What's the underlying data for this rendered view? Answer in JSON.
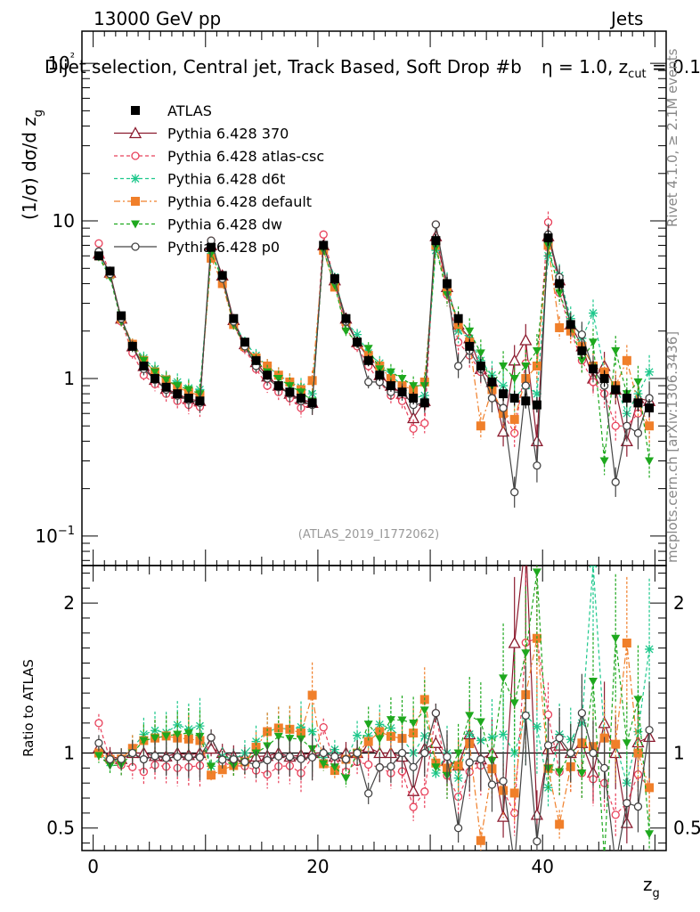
{
  "header": {
    "energy_label": "13000 GeV pp",
    "process_label": "Jets",
    "selection_label": "Dijet selection, Central jet, Track Based, Soft Drop #b",
    "beta_label": "η = 1.0, z",
    "zcut_sub": "cut",
    "zcut_value": " = 0.1"
  },
  "side_labels": {
    "rivet": "Rivet 4.1.0, ≥ 2.1M events",
    "mcplots": "mcplots.cern.ch [arXiv:1306.3436]"
  },
  "colors": {
    "atlas": "#000000",
    "p370": "#8b1a2e",
    "atlas_csc": "#e8405a",
    "d6t": "#1ec88c",
    "default": "#f07f2a",
    "dw": "#1ea81e",
    "p0": "#444444"
  },
  "chart_data": [
    {
      "type": "line",
      "panel": "main",
      "title": "Dijet selection, Central jet, Track Based, Soft Drop",
      "xlabel": "z_g",
      "ylabel": "(1/σ) dσ/d z_g",
      "yscale": "log",
      "xlim": [
        -1,
        51
      ],
      "ylim": [
        0.065,
        160
      ],
      "x_ticks": [
        "0",
        "20",
        "40"
      ],
      "y_ticks": [
        "10−1",
        "1",
        "10",
        "10²"
      ],
      "watermark": "(ATLAS_2019_I1772062)",
      "x": [
        0.5,
        1.5,
        2.5,
        3.5,
        4.5,
        5.5,
        6.5,
        7.5,
        8.5,
        9.5,
        10.5,
        11.5,
        12.5,
        13.5,
        14.5,
        15.5,
        16.5,
        17.5,
        18.5,
        19.5,
        20.5,
        21.5,
        22.5,
        23.5,
        24.5,
        25.5,
        26.5,
        27.5,
        28.5,
        29.5,
        30.5,
        31.5,
        32.5,
        33.5,
        34.5,
        35.5,
        36.5,
        37.5,
        38.5,
        39.5,
        40.5,
        41.5,
        42.5,
        43.5,
        44.5,
        45.5,
        46.5,
        47.5,
        48.5,
        49.5
      ],
      "series": [
        {
          "name": "ATLAS",
          "key": "atlas",
          "marker": "square-filled",
          "line": "none",
          "values": [
            6.0,
            4.8,
            2.5,
            1.6,
            1.2,
            1.0,
            0.88,
            0.8,
            0.75,
            0.72,
            6.8,
            4.5,
            2.4,
            1.7,
            1.3,
            1.05,
            0.9,
            0.82,
            0.75,
            0.7,
            7.0,
            4.3,
            2.4,
            1.7,
            1.3,
            1.05,
            0.9,
            0.82,
            0.75,
            0.7,
            7.5,
            4.0,
            2.4,
            1.6,
            1.2,
            0.95,
            0.8,
            0.75,
            0.72,
            0.68,
            7.8,
            4.0,
            2.2,
            1.5,
            1.15,
            1.0,
            0.85,
            0.75,
            0.7,
            0.65
          ]
        },
        {
          "name": "Pythia 6.428 370",
          "key": "p370",
          "marker": "triangle-open",
          "line": "solid",
          "values": [
            6.2,
            4.7,
            2.4,
            1.6,
            1.2,
            0.98,
            0.86,
            0.8,
            0.74,
            0.72,
            7.0,
            4.5,
            2.35,
            1.65,
            1.27,
            1.03,
            0.9,
            0.8,
            0.74,
            0.7,
            7.0,
            4.2,
            2.4,
            1.7,
            1.35,
            1.05,
            0.9,
            0.8,
            0.56,
            0.72,
            8.0,
            3.8,
            2.2,
            1.8,
            1.15,
            0.95,
            0.46,
            1.3,
            1.75,
            0.4,
            8.0,
            4.2,
            2.2,
            1.6,
            1.0,
            1.2,
            0.85,
            0.4,
            0.75,
            0.72
          ]
        },
        {
          "name": "Pythia 6.428 atlas-csc",
          "key": "atlas_csc",
          "marker": "circle-open",
          "line": "dashed",
          "values": [
            7.2,
            4.6,
            2.3,
            1.45,
            1.05,
            0.92,
            0.8,
            0.72,
            0.68,
            0.66,
            7.5,
            4.2,
            2.2,
            1.55,
            1.15,
            0.9,
            0.82,
            0.75,
            0.65,
            0.68,
            8.2,
            4.0,
            2.1,
            1.6,
            1.2,
            0.95,
            0.78,
            0.72,
            0.48,
            0.52,
            9.5,
            3.4,
            1.7,
            1.4,
            1.1,
            0.85,
            0.6,
            0.45,
            1.25,
            1.2,
            9.8,
            3.5,
            2.0,
            1.3,
            0.95,
            0.8,
            0.5,
            0.5,
            0.6,
            0.5
          ]
        },
        {
          "name": "Pythia 6.428 d6t",
          "key": "d6t",
          "marker": "star",
          "line": "dashed",
          "values": [
            6.0,
            4.5,
            2.4,
            1.65,
            1.35,
            1.15,
            1.0,
            0.95,
            0.87,
            0.85,
            6.2,
            4.4,
            2.3,
            1.7,
            1.4,
            1.2,
            1.05,
            0.95,
            0.88,
            0.8,
            6.8,
            4.4,
            2.3,
            1.9,
            1.45,
            1.25,
            1.05,
            0.9,
            0.75,
            0.78,
            6.5,
            4.0,
            2.0,
            1.8,
            1.3,
            1.05,
            0.9,
            0.75,
            0.9,
            0.8,
            6.0,
            4.5,
            2.4,
            1.8,
            2.6,
            1.1,
            0.9,
            0.6,
            0.8,
            1.1
          ]
        },
        {
          "name": "Pythia 6.428 default",
          "key": "default",
          "marker": "square-filled",
          "line": "dashdot",
          "values": [
            6.0,
            4.6,
            2.4,
            1.65,
            1.3,
            1.1,
            0.98,
            0.88,
            0.82,
            0.78,
            5.8,
            4.0,
            2.2,
            1.6,
            1.35,
            1.2,
            1.05,
            0.95,
            0.85,
            0.97,
            6.5,
            3.8,
            2.3,
            1.7,
            1.4,
            1.2,
            1.0,
            0.9,
            0.85,
            0.95,
            7.0,
            3.6,
            2.2,
            1.7,
            0.5,
            0.85,
            0.6,
            0.55,
            1.0,
            1.2,
            7.0,
            2.1,
            2.0,
            1.6,
            1.2,
            1.1,
            0.9,
            1.3,
            0.7,
            0.5
          ]
        },
        {
          "name": "Pythia 6.428 dw",
          "key": "dw",
          "marker": "triangle-down-filled",
          "line": "dashed",
          "values": [
            5.9,
            4.4,
            2.3,
            1.6,
            1.3,
            1.1,
            0.98,
            0.9,
            0.85,
            0.8,
            6.2,
            4.3,
            2.2,
            1.6,
            1.3,
            1.1,
            1.0,
            0.9,
            0.82,
            0.72,
            6.5,
            3.9,
            2.0,
            1.7,
            1.55,
            1.15,
            1.1,
            1.0,
            0.9,
            0.9,
            6.8,
            3.4,
            2.4,
            2.0,
            1.45,
            0.9,
            1.2,
            1.0,
            1.2,
            1.5,
            7.0,
            3.5,
            2.2,
            1.3,
            1.7,
            0.3,
            1.5,
            0.8,
            0.95,
            0.3
          ]
        },
        {
          "name": "Pythia 6.428 p0",
          "key": "p0",
          "marker": "circle-open",
          "line": "solid",
          "values": [
            6.4,
            4.6,
            2.4,
            1.6,
            1.15,
            0.98,
            0.85,
            0.78,
            0.73,
            0.7,
            7.5,
            4.3,
            2.3,
            1.6,
            1.2,
            1.0,
            0.88,
            0.8,
            0.72,
            0.68,
            7.0,
            4.2,
            2.3,
            1.7,
            0.95,
            0.95,
            0.82,
            0.82,
            0.68,
            0.7,
            9.5,
            3.9,
            1.2,
            1.5,
            1.15,
            0.75,
            0.65,
            0.19,
            0.9,
            0.28,
            8.2,
            4.4,
            2.2,
            1.9,
            1.15,
            0.9,
            0.22,
            0.5,
            0.45,
            0.75
          ]
        }
      ]
    },
    {
      "type": "line",
      "panel": "ratio",
      "xlabel": "z_g",
      "ylabel": "Ratio to ATLAS",
      "xlim": [
        -1,
        51
      ],
      "ylim": [
        0.35,
        2.25
      ],
      "y_ticks": [
        "0.5",
        "1",
        "2"
      ],
      "reference_line": 1
    }
  ]
}
